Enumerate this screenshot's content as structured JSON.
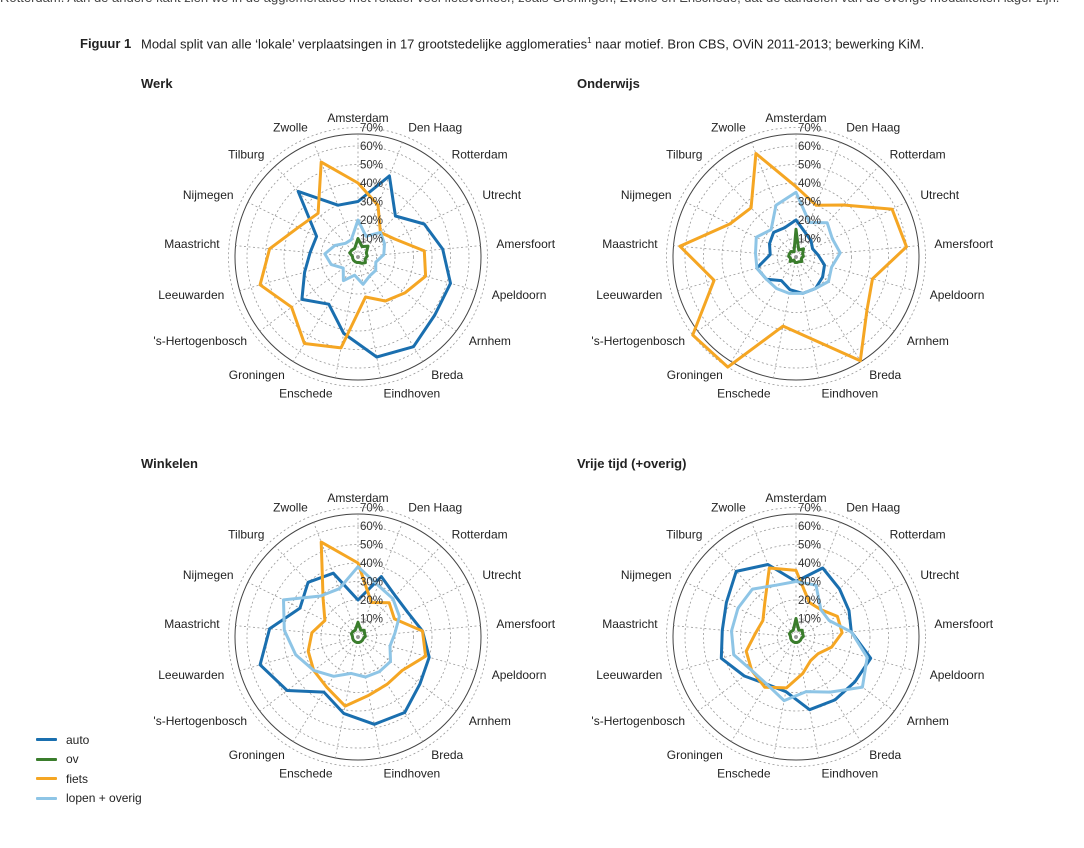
{
  "figure": {
    "cut_text": "Rotterdam. Aan de andere kant zien we in de agglomeraties met relatief veel fietsverkeer, zoals Groningen, Zwolle en Enschede, dat de aandelen van de overige modaliteiten lager zijn.",
    "label": "Figuur 1",
    "caption": "Modal split van alle ‘lokale’ verplaatsingen in 17 grootstedelijke agglomeraties",
    "caption_sup": "1",
    "caption_tail": " naar motief. Bron CBS, OViN 2011-2013; bewerking KiM."
  },
  "legend": [
    {
      "label": "auto",
      "color": "#1a6faf"
    },
    {
      "label": "ov",
      "color": "#3a7d2c"
    },
    {
      "label": "fiets",
      "color": "#f5a623"
    },
    {
      "label": "lopen + overig",
      "color": "#8ec5e6"
    }
  ],
  "chart_data": [
    {
      "type": "radar",
      "title": "Werk",
      "categories": [
        "Amsterdam",
        "Den Haag",
        "Rotterdam",
        "Utrecht",
        "Amersfoort",
        "Apeldoorn",
        "Arnhem",
        "Breda",
        "Eindhoven",
        "Enschede",
        "Groningen",
        "'s-Hertogenbosch",
        "Leeuwarden",
        "Maastricht",
        "Nijmegen",
        "Tilburg",
        "Zwolle"
      ],
      "ticks": [
        "10%",
        "20%",
        "30%",
        "40%",
        "50%",
        "60%",
        "70%"
      ],
      "rmax": 70,
      "series": [
        {
          "name": "auto",
          "values": [
            30,
            47,
            30,
            40,
            46,
            52,
            52,
            57,
            55,
            42,
            30,
            38,
            30,
            26,
            25,
            48,
            30
          ]
        },
        {
          "name": "ov",
          "values": [
            10,
            6,
            8,
            5,
            5,
            4,
            5,
            4,
            3,
            3,
            3,
            3,
            3,
            3,
            5,
            5,
            5
          ]
        },
        {
          "name": "fiets",
          "values": [
            40,
            30,
            18,
            22,
            36,
            38,
            32,
            28,
            22,
            50,
            55,
            45,
            55,
            48,
            36,
            32,
            55
          ]
        },
        {
          "name": "lopen + overig",
          "values": [
            20,
            12,
            18,
            16,
            14,
            10,
            12,
            12,
            15,
            10,
            15,
            10,
            15,
            18,
            14,
            10,
            10
          ]
        }
      ]
    },
    {
      "type": "radar",
      "title": "Onderwijs",
      "categories": [
        "Amsterdam",
        "Den Haag",
        "Rotterdam",
        "Utrecht",
        "Amersfoort",
        "Apeldoorn",
        "Arnhem",
        "Breda",
        "Eindhoven",
        "Enschede",
        "Groningen",
        "'s-Hertogenbosch",
        "Leeuwarden",
        "Maastricht",
        "Nijmegen",
        "Tilburg",
        "Zwolle"
      ],
      "ticks": [
        "10%",
        "20%",
        "30%",
        "40%",
        "50%",
        "60%",
        "70%"
      ],
      "rmax": 70,
      "series": [
        {
          "name": "auto",
          "values": [
            20,
            14,
            12,
            10,
            12,
            16,
            18,
            20,
            20,
            18,
            15,
            20,
            22,
            14,
            16,
            18,
            17
          ]
        },
        {
          "name": "ov",
          "values": [
            15,
            4,
            6,
            4,
            4,
            3,
            4,
            3,
            3,
            3,
            2,
            4,
            3,
            4,
            4,
            4,
            3
          ]
        },
        {
          "name": "fiets",
          "values": [
            38,
            30,
            38,
            58,
            60,
            43,
            48,
            66,
            45,
            38,
            76,
            70,
            46,
            63,
            40,
            36,
            60
          ]
        },
        {
          "name": "lopen + overig",
          "values": [
            35,
            20,
            25,
            22,
            24,
            20,
            22,
            20,
            20,
            20,
            20,
            20,
            22,
            22,
            24,
            20,
            30
          ]
        }
      ]
    },
    {
      "type": "radar",
      "title": "Winkelen",
      "categories": [
        "Amsterdam",
        "Den Haag",
        "Rotterdam",
        "Utrecht",
        "Amersfoort",
        "Apeldoorn",
        "Arnhem",
        "Breda",
        "Eindhoven",
        "Enschede",
        "Groningen",
        "'s-Hertogenbosch",
        "Leeuwarden",
        "Maastricht",
        "Nijmegen",
        "Tilburg",
        "Zwolle"
      ],
      "ticks": [
        "10%",
        "20%",
        "30%",
        "40%",
        "50%",
        "60%",
        "70%"
      ],
      "rmax": 70,
      "series": [
        {
          "name": "auto",
          "values": [
            20,
            35,
            30,
            30,
            35,
            40,
            42,
            48,
            48,
            42,
            35,
            48,
            55,
            48,
            35,
            40,
            37
          ]
        },
        {
          "name": "ov",
          "values": [
            8,
            4,
            5,
            4,
            4,
            3,
            3,
            3,
            3,
            3,
            3,
            3,
            3,
            3,
            4,
            4,
            4
          ]
        },
        {
          "name": "fiets",
          "values": [
            40,
            20,
            25,
            22,
            35,
            38,
            30,
            30,
            32,
            38,
            32,
            30,
            28,
            25,
            20,
            28,
            55
          ]
        },
        {
          "name": "lopen + overig",
          "values": [
            38,
            30,
            28,
            25,
            20,
            18,
            22,
            22,
            22,
            20,
            25,
            30,
            35,
            40,
            45,
            30,
            28
          ]
        }
      ]
    },
    {
      "type": "radar",
      "title": "Vrije tijd (+overig)",
      "categories": [
        "Amsterdam",
        "Den Haag",
        "Rotterdam",
        "Utrecht",
        "Amersfoort",
        "Apeldoorn",
        "Arnhem",
        "Breda",
        "Eindhoven",
        "Enschede",
        "Groningen",
        "'s-Hertogenbosch",
        "Leeuwarden",
        "Maastricht",
        "Nijmegen",
        "Tilburg",
        "Zwolle"
      ],
      "ticks": [
        "10%",
        "20%",
        "30%",
        "40%",
        "50%",
        "60%",
        "70%"
      ],
      "rmax": 70,
      "series": [
        {
          "name": "auto",
          "values": [
            30,
            40,
            35,
            32,
            30,
            42,
            40,
            40,
            40,
            30,
            30,
            35,
            42,
            40,
            42,
            48,
            42
          ]
        },
        {
          "name": "ov",
          "values": [
            10,
            4,
            5,
            4,
            4,
            3,
            3,
            3,
            3,
            3,
            3,
            3,
            3,
            3,
            4,
            4,
            4
          ]
        },
        {
          "name": "fiets",
          "values": [
            36,
            20,
            20,
            25,
            25,
            20,
            15,
            15,
            20,
            28,
            32,
            30,
            28,
            22,
            20,
            25,
            40
          ]
        },
        {
          "name": "lopen + overig",
          "values": [
            30,
            30,
            20,
            20,
            30,
            40,
            45,
            35,
            30,
            35,
            30,
            30,
            35,
            35,
            35,
            35,
            30
          ]
        }
      ]
    }
  ]
}
